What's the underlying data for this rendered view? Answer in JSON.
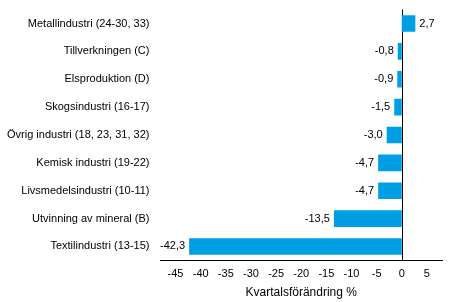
{
  "chart_data": {
    "type": "bar",
    "orientation": "horizontal",
    "categories": [
      "Metallindustri (24-30, 33)",
      "Tillverkningen (C)",
      "Elsproduktion (D)",
      "Skogsindustri (16-17)",
      "Övrig industri (18, 23, 31, 32)",
      "Kemisk industri (19-22)",
      "Livsmedelsindustri (10-11)",
      "Utvinning av mineral (B)",
      "Textilindustri (13-15)"
    ],
    "values": [
      2.7,
      -0.8,
      -0.9,
      -1.5,
      -3.0,
      -4.7,
      -4.7,
      -13.5,
      -42.3
    ],
    "value_labels": [
      "2,7",
      "-0,8",
      "-0,9",
      "-1,5",
      "-3,0",
      "-4,7",
      "-4,7",
      "-13,5",
      "-42,3"
    ],
    "data_labels": true,
    "color": "#009fe3",
    "x_label": "Kvartalsförändring %",
    "xlim": [
      -48,
      8
    ],
    "xticks": [
      -45,
      -40,
      -35,
      -30,
      -25,
      -20,
      -15,
      -10,
      -5,
      0,
      5
    ],
    "grid": false
  }
}
